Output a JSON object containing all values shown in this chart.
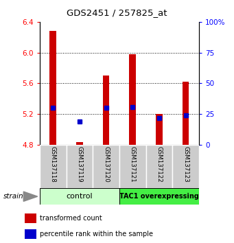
{
  "title": "GDS2451 / 257825_at",
  "samples": [
    "GSM137118",
    "GSM137119",
    "GSM137120",
    "GSM137121",
    "GSM137122",
    "GSM137123"
  ],
  "red_top": [
    6.28,
    4.83,
    5.7,
    5.98,
    5.2,
    5.62
  ],
  "red_bottom": [
    4.8,
    4.8,
    4.8,
    4.8,
    4.8,
    4.8
  ],
  "blue_val": [
    5.28,
    5.1,
    5.28,
    5.29,
    5.15,
    5.18
  ],
  "ylim": [
    4.8,
    6.4
  ],
  "yticks_left": [
    4.8,
    5.2,
    5.6,
    6.0,
    6.4
  ],
  "yticks_right": [
    0,
    25,
    50,
    75,
    100
  ],
  "y_right_labels": [
    "0",
    "25",
    "50",
    "75",
    "100%"
  ],
  "bar_width": 0.25,
  "bar_color": "#cc0000",
  "blue_color": "#0000cc",
  "gray_box_color": "#cccccc",
  "ctrl_color": "#ccffcc",
  "tac_color": "#44ee44",
  "legend_red": "transformed count",
  "legend_blue": "percentile rank within the sample",
  "grid_dotted_at": [
    5.2,
    5.6,
    6.0
  ]
}
